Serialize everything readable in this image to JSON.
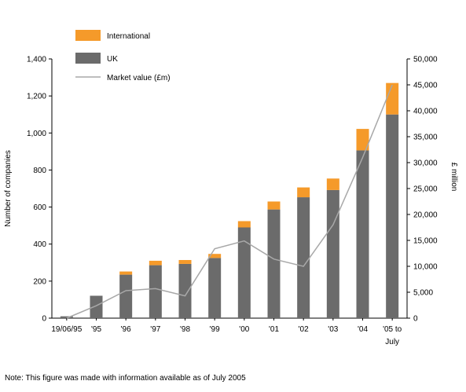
{
  "chart_data": {
    "type": "bar",
    "categories": [
      "19/06/95",
      "'95",
      "'96",
      "'97",
      "'98",
      "'99",
      "'00",
      "'01",
      "'02",
      "'03",
      "'04",
      [
        "'05 to",
        "July"
      ]
    ],
    "series": [
      {
        "name": "UK",
        "kind": "bar",
        "color": "#6b6b6b",
        "values": [
          10,
          121,
          235,
          286,
          293,
          325,
          490,
          587,
          653,
          692,
          906,
          1100
        ]
      },
      {
        "name": "International",
        "kind": "bar-stacked",
        "color": "#f59a2a",
        "values": [
          0,
          0,
          17,
          24,
          21,
          22,
          34,
          43,
          53,
          62,
          116,
          170
        ]
      },
      {
        "name": "Market value (£m)",
        "kind": "line",
        "axis": "right",
        "color": "#a8a8a8",
        "values": [
          0,
          2400,
          5300,
          5700,
          4300,
          13400,
          14900,
          11400,
          10000,
          18000,
          31000,
          45000
        ]
      }
    ],
    "ylabel": "Number of companies",
    "y2label": "£ million",
    "ylim": [
      0,
      1400
    ],
    "y2lim": [
      0,
      50000
    ],
    "yticks": [
      "0",
      "200",
      "400",
      "600",
      "800",
      "1,000",
      "1,200",
      "1,400"
    ],
    "y2ticks": [
      "0",
      "5,000",
      "10,000",
      "15,000",
      "20,000",
      "25,000",
      "30,000",
      "35,000",
      "40,000",
      "45,000",
      "50,000"
    ],
    "legend": [
      "International",
      "UK",
      "Market value (£m)"
    ],
    "legend_position": "top-left",
    "grid": false
  },
  "note": "Note: This figure was made with information available as of July 2005"
}
